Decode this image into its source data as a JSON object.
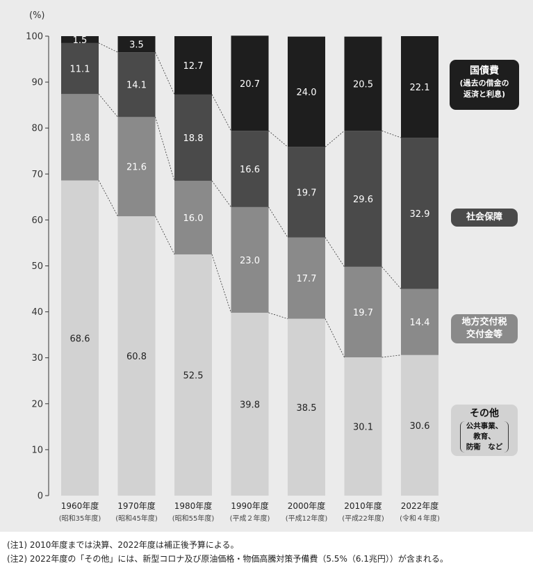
{
  "chart_data": {
    "type": "bar",
    "stacked": true,
    "ylabel": "(%)",
    "ylim": [
      0,
      100
    ],
    "yticks": [
      "0",
      "10",
      "20",
      "30",
      "40",
      "50",
      "60",
      "70",
      "80",
      "90",
      "100"
    ],
    "grid": false,
    "legend_placement": "right",
    "categories": [
      "1960年度",
      "1970年度",
      "1980年度",
      "1990年度",
      "2000年度",
      "2010年度",
      "2022年度"
    ],
    "category_subs": [
      "(昭和35年度)",
      "(昭和45年度)",
      "(昭和55年度)",
      "(平成２年度)",
      "(平成12年度)",
      "(平成22年度)",
      "(令和４年度)"
    ],
    "series": [
      {
        "name": "その他",
        "color": "#d2d2d2",
        "label_color": "#222222",
        "values": [
          68.6,
          60.8,
          52.5,
          39.8,
          38.5,
          30.1,
          30.6
        ],
        "labels": [
          "68.6",
          "60.8",
          "52.5",
          "39.8",
          "38.5",
          "30.1",
          "30.6"
        ]
      },
      {
        "name": "地方交付税交付金等",
        "color": "#8a8a8a",
        "label_color": "#ffffff",
        "values": [
          18.8,
          21.6,
          16.0,
          23.0,
          17.7,
          19.7,
          14.4
        ],
        "labels": [
          "18.8",
          "21.6",
          "16.0",
          "23.0",
          "17.7",
          "19.7",
          "14.4"
        ]
      },
      {
        "name": "社会保障",
        "color": "#4a4a4a",
        "label_color": "#ffffff",
        "values": [
          11.1,
          14.1,
          18.8,
          16.6,
          19.7,
          29.6,
          32.9
        ],
        "labels": [
          "11.1",
          "14.1",
          "18.8",
          "16.6",
          "19.7",
          "29.6",
          "32.9"
        ]
      },
      {
        "name": "国債費",
        "color": "#1e1e1e",
        "label_color": "#ffffff",
        "values": [
          1.5,
          3.5,
          12.7,
          20.7,
          24.0,
          20.5,
          22.1
        ],
        "labels": [
          "1.5",
          "3.5",
          "12.7",
          "20.7",
          "24.0",
          "20.5",
          "22.1"
        ]
      }
    ]
  },
  "legend": {
    "debt_title": "国債費",
    "debt_sub1": "(過去の借金の",
    "debt_sub2": "返済と利息)",
    "social_security": "社会保障",
    "local_line1": "地方交付税",
    "local_line2": "交付金等",
    "other_title": "その他",
    "other_sub1": "公共事業、",
    "other_sub2": "教育、",
    "other_sub3": "防衛　など"
  },
  "notes": {
    "note1": "(注1) 2010年度までは決算、2022年度は補正後予算による。",
    "note2": "(注2) 2022年度の「その他」には、新型コロナ及び原油価格・物価高騰対策予備費（5.5%（6.1兆円））が含まれる。"
  }
}
